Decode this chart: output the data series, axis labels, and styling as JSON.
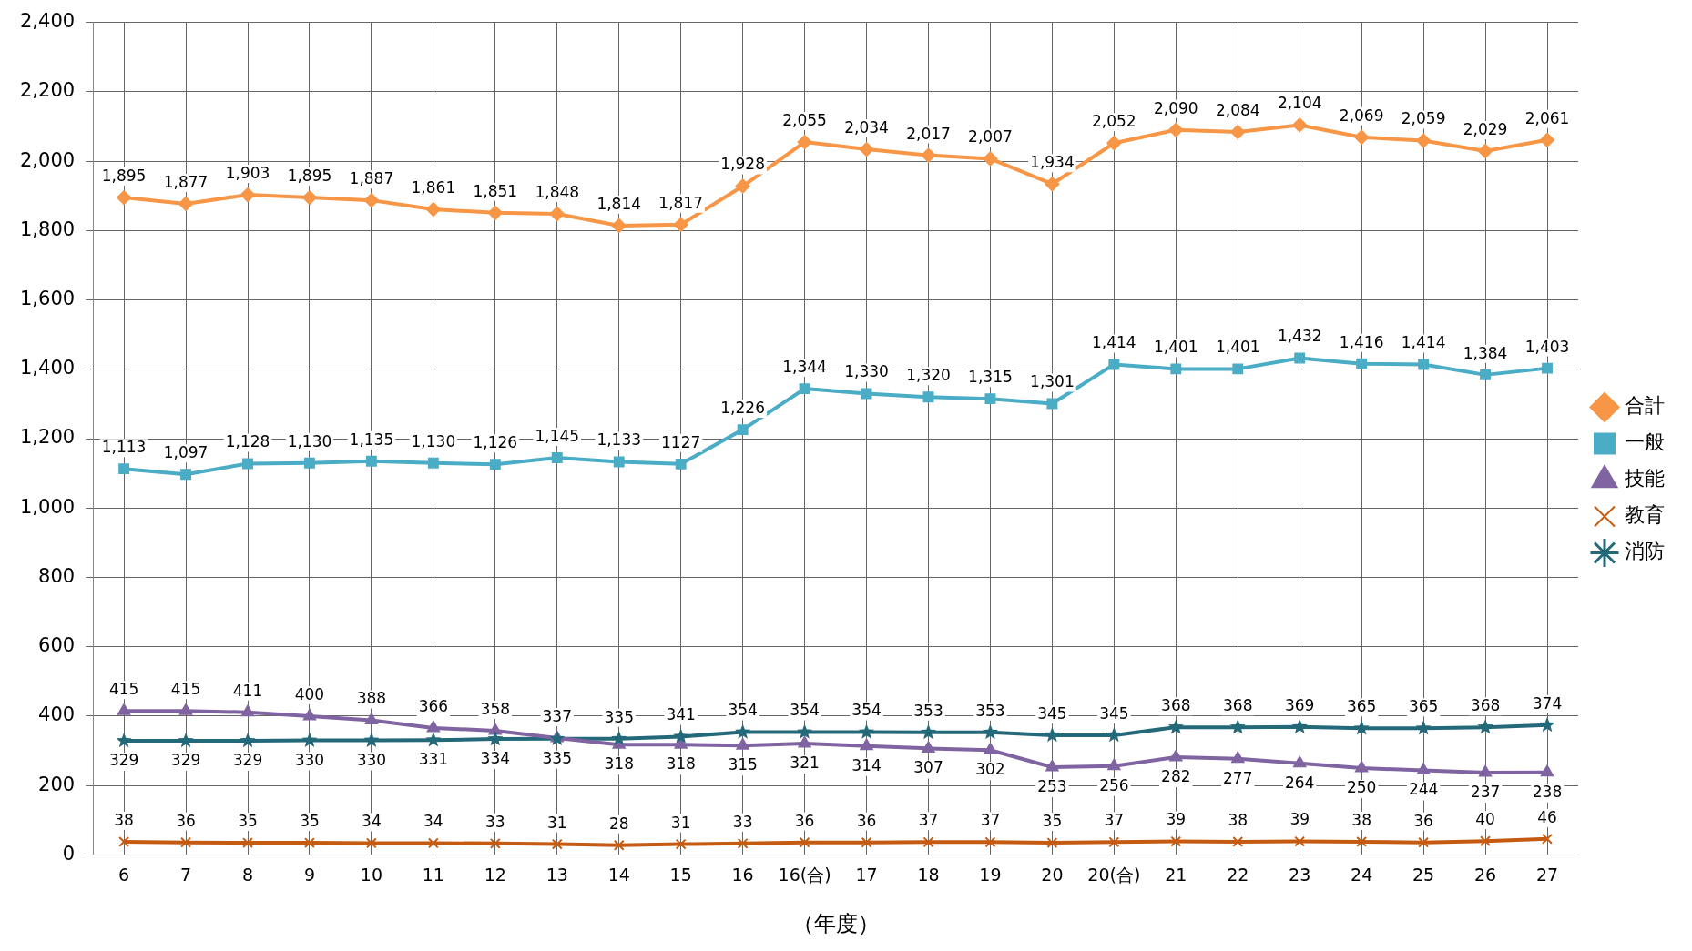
{
  "chart_data": {
    "type": "line",
    "xlabel": "（年度）",
    "categories": [
      "6",
      "7",
      "8",
      "9",
      "10",
      "11",
      "12",
      "13",
      "14",
      "15",
      "16",
      "16(合)",
      "17",
      "18",
      "19",
      "20",
      "20(合)",
      "21",
      "22",
      "23",
      "24",
      "25",
      "26",
      "27"
    ],
    "ylim": [
      0,
      2400
    ],
    "yticks": [
      0,
      200,
      400,
      600,
      800,
      {
        "value": 1000,
        "label": "1,000"
      },
      {
        "value": 1200,
        "label": "1,200"
      },
      {
        "value": 1400,
        "label": "1,400"
      },
      {
        "value": 1600,
        "label": "1,600"
      },
      {
        "value": 1800,
        "label": "1,800"
      },
      {
        "value": 2000,
        "label": "2,000"
      },
      {
        "value": 2200,
        "label": "2,200"
      },
      {
        "value": 2400,
        "label": "2,400"
      }
    ],
    "grid": true,
    "legend": "right",
    "series": [
      {
        "name": "合計",
        "color": "#f79646",
        "marker": "diamond",
        "values": [
          1895,
          1877,
          1903,
          1895,
          1887,
          1861,
          1851,
          1848,
          1814,
          1817,
          1928,
          2055,
          2034,
          2017,
          2007,
          1934,
          2052,
          2090,
          2084,
          2104,
          2069,
          2059,
          2029,
          2061
        ],
        "value_labels": [
          "1,895",
          "1,877",
          "1,903",
          "1,895",
          "1,887",
          "1,861",
          "1,851",
          "1,848",
          "1,814",
          "1,817",
          "1,928",
          "2,055",
          "2,034",
          "2,017",
          "2,007",
          "1,934",
          "2,052",
          "2,090",
          "2,084",
          "2,104",
          "2,069",
          "2,059",
          "2,029",
          "2,061"
        ]
      },
      {
        "name": "一般",
        "color": "#4bacc6",
        "marker": "square",
        "values": [
          1113,
          1097,
          1128,
          1130,
          1135,
          1130,
          1126,
          1145,
          1133,
          1127,
          1226,
          1344,
          1330,
          1320,
          1315,
          1301,
          1414,
          1401,
          1401,
          1432,
          1416,
          1414,
          1384,
          1403
        ],
        "value_labels": [
          "1,113",
          "1,097",
          "1,128",
          "1,130",
          "1,135",
          "1,130",
          "1,126",
          "1,145",
          "1,133",
          "1127",
          "1,226",
          "1,344",
          "1,330",
          "1,320",
          "1,315",
          "1,301",
          "1,414",
          "1,401",
          "1,401",
          "1,432",
          "1,416",
          "1,414",
          "1,384",
          "1,403"
        ]
      },
      {
        "name": "技能",
        "color": "#8064a2",
        "marker": "triangle",
        "values": [
          415,
          415,
          411,
          400,
          388,
          366,
          358,
          337,
          318,
          318,
          315,
          321,
          314,
          307,
          302,
          253,
          256,
          282,
          277,
          264,
          250,
          244,
          237,
          238
        ],
        "value_labels": [
          "415",
          "415",
          "411",
          "400",
          "388",
          "366",
          "358",
          "337",
          "318",
          "318",
          "315",
          "321",
          "314",
          "307",
          "302",
          "253",
          "256",
          "282",
          "277",
          "264",
          "250",
          "244",
          "237",
          "238"
        ]
      },
      {
        "name": "教育",
        "color": "#c55a11",
        "marker": "cross",
        "values": [
          38,
          36,
          35,
          35,
          34,
          34,
          33,
          31,
          28,
          31,
          33,
          36,
          36,
          37,
          37,
          35,
          37,
          39,
          38,
          39,
          38,
          36,
          40,
          46
        ],
        "value_labels": [
          "38",
          "36",
          "35",
          "35",
          "34",
          "34",
          "33",
          "31",
          "28",
          "31",
          "33",
          "36",
          "36",
          "37",
          "37",
          "35",
          "37",
          "39",
          "38",
          "39",
          "38",
          "36",
          "40",
          "46"
        ]
      },
      {
        "name": "消防",
        "color": "#23697a",
        "marker": "star",
        "values": [
          329,
          329,
          329,
          330,
          330,
          331,
          334,
          335,
          335,
          341,
          354,
          354,
          354,
          353,
          353,
          345,
          345,
          368,
          368,
          369,
          365,
          365,
          368,
          374
        ],
        "value_labels": [
          "329",
          "329",
          "329",
          "330",
          "330",
          "331",
          "334",
          "335",
          "335",
          "341",
          "354",
          "354",
          "354",
          "353",
          "353",
          "345",
          "345",
          "368",
          "368",
          "369",
          "365",
          "365",
          "368",
          "374"
        ]
      }
    ]
  }
}
